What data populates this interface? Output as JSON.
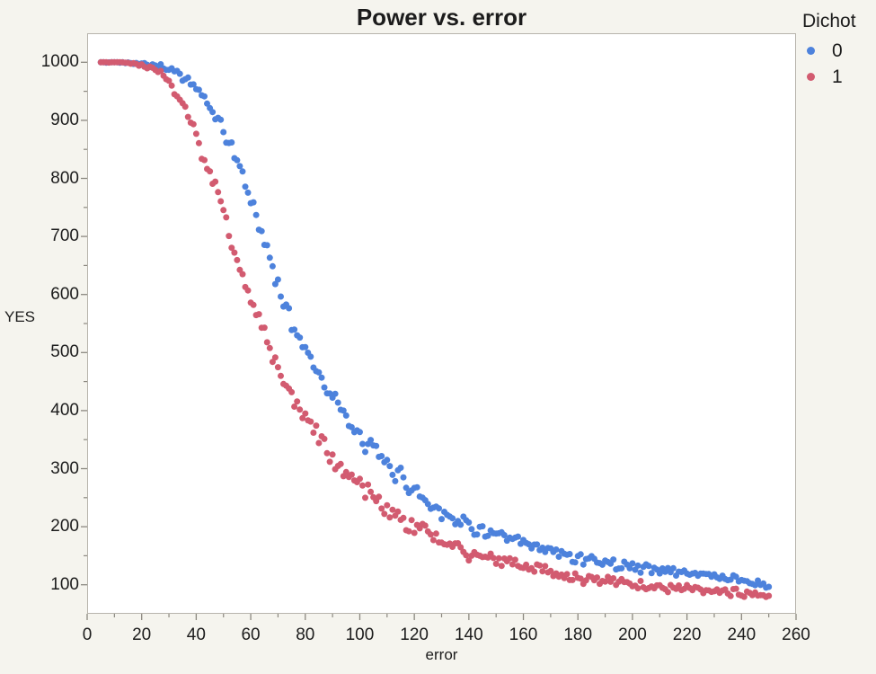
{
  "chart_data": {
    "type": "scatter",
    "title": "Power vs. error",
    "xlabel": "error",
    "ylabel": "YES",
    "xlim": [
      0,
      260
    ],
    "ylim": [
      50,
      1050
    ],
    "grid": "off",
    "legend_position": "top-right-outside",
    "x_ticks": [
      0,
      20,
      40,
      60,
      80,
      100,
      120,
      140,
      160,
      180,
      200,
      220,
      240,
      260
    ],
    "x_minor_ticks": [
      10,
      30,
      50,
      70,
      90,
      110,
      130,
      150,
      170,
      190,
      210,
      230,
      250
    ],
    "y_ticks": [
      100,
      200,
      300,
      400,
      500,
      600,
      700,
      800,
      900,
      1000
    ],
    "y_minor_ticks": [
      150,
      250,
      350,
      450,
      550,
      650,
      750,
      850,
      950
    ],
    "colors": {
      "background": "#F5F4EE",
      "plot_background": "#FFFFFF",
      "frame": "#B7B4AC",
      "tick": "#8B8880",
      "text": "#1C1C1C"
    },
    "legend": {
      "title": "Dichot",
      "entries": [
        {
          "label": "0",
          "color": "#4D82DC"
        },
        {
          "label": "1",
          "color": "#D25B70"
        }
      ]
    },
    "scatter_sampling": {
      "x_start": 5,
      "x_end": 250,
      "x_step": 1,
      "seed": 42,
      "clamp_y_max": 1000,
      "noise_halfrange_points": [
        [
          5,
          2
        ],
        [
          18,
          3
        ],
        [
          28,
          7
        ],
        [
          40,
          12
        ],
        [
          55,
          16
        ],
        [
          75,
          20
        ],
        [
          95,
          19
        ],
        [
          120,
          17
        ],
        [
          150,
          14
        ],
        [
          180,
          12
        ],
        [
          220,
          10
        ],
        [
          250,
          8
        ]
      ]
    },
    "series": [
      {
        "name": "0",
        "color": "#4D82DC",
        "marker_radius": 3.5,
        "trend_points": [
          [
            5,
            1000
          ],
          [
            10,
            1000
          ],
          [
            15,
            1000
          ],
          [
            20,
            998
          ],
          [
            25,
            995
          ],
          [
            30,
            989
          ],
          [
            35,
            977
          ],
          [
            40,
            955
          ],
          [
            45,
            922
          ],
          [
            50,
            880
          ],
          [
            55,
            832
          ],
          [
            60,
            765
          ],
          [
            65,
            690
          ],
          [
            70,
            618
          ],
          [
            75,
            552
          ],
          [
            80,
            505
          ],
          [
            85,
            468
          ],
          [
            90,
            425
          ],
          [
            95,
            385
          ],
          [
            100,
            350
          ],
          [
            105,
            332
          ],
          [
            110,
            305
          ],
          [
            115,
            287
          ],
          [
            120,
            262
          ],
          [
            125,
            243
          ],
          [
            130,
            227
          ],
          [
            135,
            213
          ],
          [
            140,
            202
          ],
          [
            145,
            193
          ],
          [
            150,
            185
          ],
          [
            155,
            177
          ],
          [
            160,
            170
          ],
          [
            165,
            163
          ],
          [
            170,
            157
          ],
          [
            175,
            152
          ],
          [
            180,
            147
          ],
          [
            185,
            143
          ],
          [
            190,
            139
          ],
          [
            195,
            135
          ],
          [
            200,
            131
          ],
          [
            205,
            128
          ],
          [
            210,
            126
          ],
          [
            215,
            123
          ],
          [
            220,
            121
          ],
          [
            225,
            118
          ],
          [
            230,
            116
          ],
          [
            235,
            112
          ],
          [
            240,
            108
          ],
          [
            245,
            103
          ],
          [
            250,
            97
          ]
        ]
      },
      {
        "name": "1",
        "color": "#D25B70",
        "marker_radius": 3.5,
        "trend_points": [
          [
            5,
            1000
          ],
          [
            10,
            1000
          ],
          [
            15,
            999
          ],
          [
            20,
            996
          ],
          [
            25,
            988
          ],
          [
            30,
            966
          ],
          [
            35,
            930
          ],
          [
            40,
            872
          ],
          [
            45,
            805
          ],
          [
            50,
            748
          ],
          [
            55,
            655
          ],
          [
            60,
            585
          ],
          [
            65,
            532
          ],
          [
            70,
            472
          ],
          [
            75,
            428
          ],
          [
            80,
            392
          ],
          [
            85,
            352
          ],
          [
            90,
            318
          ],
          [
            95,
            290
          ],
          [
            100,
            274
          ],
          [
            105,
            252
          ],
          [
            110,
            230
          ],
          [
            115,
            214
          ],
          [
            120,
            198
          ],
          [
            125,
            188
          ],
          [
            130,
            178
          ],
          [
            135,
            166
          ],
          [
            140,
            156
          ],
          [
            145,
            148
          ],
          [
            150,
            143
          ],
          [
            155,
            138
          ],
          [
            160,
            133
          ],
          [
            165,
            127
          ],
          [
            170,
            121
          ],
          [
            175,
            115
          ],
          [
            180,
            111
          ],
          [
            185,
            108
          ],
          [
            190,
            106
          ],
          [
            195,
            103
          ],
          [
            200,
            100
          ],
          [
            205,
            98
          ],
          [
            210,
            96
          ],
          [
            215,
            94
          ],
          [
            220,
            92
          ],
          [
            225,
            90
          ],
          [
            230,
            89
          ],
          [
            235,
            88
          ],
          [
            240,
            86
          ],
          [
            245,
            83
          ],
          [
            250,
            80
          ]
        ]
      }
    ]
  }
}
